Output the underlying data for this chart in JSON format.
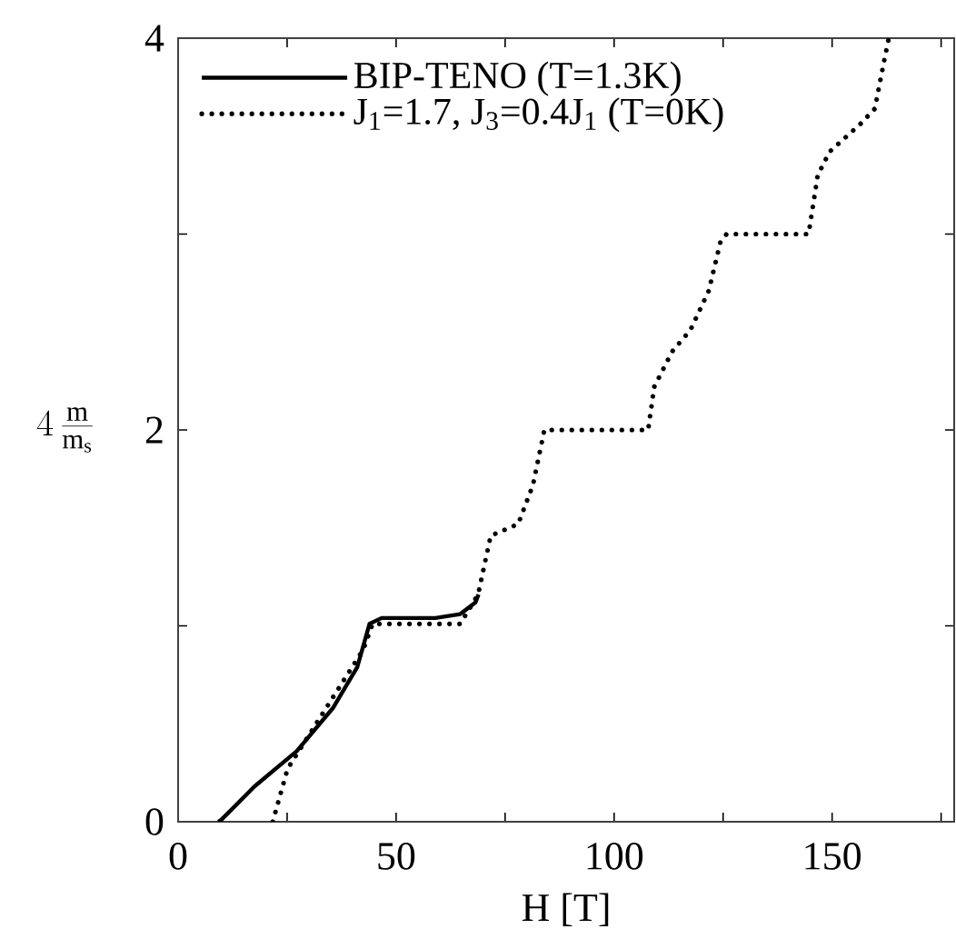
{
  "chart_data": {
    "type": "line",
    "xlabel": "H [T]",
    "ylabel": "4\\,\\frac{\\mathrm{m}}{\\mathrm{m_s}}",
    "xlim": [
      0,
      178
    ],
    "ylim": [
      0,
      4
    ],
    "xticks": [
      0,
      {
        "value": 25,
        "label": null
      },
      50,
      {
        "value": 75,
        "label": null
      },
      100,
      {
        "value": 125,
        "label": null
      },
      150,
      {
        "value": 175,
        "label": null
      }
    ],
    "yticks": [
      0,
      {
        "value": 1,
        "label": null
      },
      2,
      {
        "value": 3,
        "label": null
      },
      4
    ],
    "grid": false,
    "legend": "top left",
    "series": [
      {
        "name": "BIP-TENO (T=1.3K)",
        "color": "#000000",
        "line_style": "solid",
        "x": [
          9.2,
          9.9,
          17.5,
          27.2,
          35.5,
          41.1,
          43.9,
          46.7,
          59,
          64.7,
          68.2,
          68.9
        ],
        "values": [
          0,
          0.01,
          0.18,
          0.36,
          0.58,
          0.79,
          1.01,
          1.04,
          1.04,
          1.06,
          1.12,
          1.16
        ]
      },
      {
        "name": "J$_{1}$=1.7, J$_{3}$=0.4J$_{1}$ (T=0K)",
        "color": "#000000",
        "line_style": "dotted",
        "x": [
          21.7,
          25.1,
          42.5,
          44.6,
          64.7,
          68.8,
          71.7,
          78,
          81.4,
          84,
          107.8,
          109.2,
          113.3,
          117.5,
          121.7,
          124.4,
          125.8,
          144.6,
          146.7,
          149.4,
          156.4,
          159.8,
          161.9,
          163
        ],
        "values": [
          0,
          0.27,
          0.88,
          1.01,
          1.01,
          1.16,
          1.46,
          1.52,
          1.72,
          2.0,
          2.0,
          2.22,
          2.4,
          2.51,
          2.71,
          2.96,
          3.0,
          3.0,
          3.3,
          3.42,
          3.56,
          3.64,
          3.88,
          4.0
        ]
      }
    ]
  }
}
